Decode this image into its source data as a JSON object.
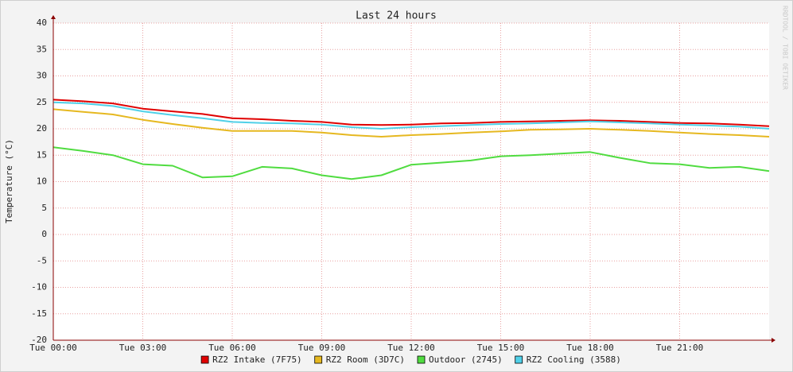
{
  "chart_data": {
    "type": "line",
    "title": "Last 24 hours",
    "y_label": "Temperature (°C)",
    "watermark": "RRDTOOL / TOBI OETIKER",
    "x": [
      0,
      1,
      2,
      3,
      4,
      5,
      6,
      7,
      8,
      9,
      10,
      11,
      12,
      13,
      14,
      15,
      16,
      17,
      18,
      19,
      20,
      21,
      22,
      23,
      24
    ],
    "xlim": [
      0,
      24
    ],
    "xticks": [
      {
        "value": 0,
        "label": "Tue 00:00"
      },
      {
        "value": 3,
        "label": "Tue 03:00"
      },
      {
        "value": 6,
        "label": "Tue 06:00"
      },
      {
        "value": 9,
        "label": "Tue 09:00"
      },
      {
        "value": 12,
        "label": "Tue 12:00"
      },
      {
        "value": 15,
        "label": "Tue 15:00"
      },
      {
        "value": 18,
        "label": "Tue 18:00"
      },
      {
        "value": 21,
        "label": "Tue 21:00"
      }
    ],
    "ylim": [
      -20,
      40
    ],
    "yticks": [
      -20,
      -15,
      -10,
      -5,
      0,
      5,
      10,
      15,
      20,
      25,
      30,
      35,
      40
    ],
    "grid": true,
    "legend": "bottom",
    "series": [
      {
        "name": "RZ2 Intake (7F75)",
        "color": "#e00000",
        "values": [
          25.5,
          25.2,
          24.8,
          23.8,
          23.3,
          22.8,
          22.0,
          21.8,
          21.5,
          21.3,
          20.8,
          20.7,
          20.8,
          21.0,
          21.1,
          21.3,
          21.4,
          21.5,
          21.6,
          21.5,
          21.3,
          21.1,
          21.0,
          20.8,
          20.5
        ]
      },
      {
        "name": "RZ2 Room (3D7C)",
        "color": "#e6b820",
        "values": [
          23.7,
          23.2,
          22.7,
          21.7,
          20.9,
          20.2,
          19.6,
          19.6,
          19.6,
          19.3,
          18.8,
          18.5,
          18.8,
          19.0,
          19.3,
          19.5,
          19.8,
          19.9,
          20.0,
          19.8,
          19.6,
          19.3,
          19.0,
          18.8,
          18.5
        ]
      },
      {
        "name": "Outdoor (2745)",
        "color": "#50dc40",
        "values": [
          16.5,
          15.8,
          15.0,
          13.3,
          13.0,
          10.8,
          11.0,
          12.8,
          12.5,
          11.2,
          10.5,
          11.2,
          13.2,
          13.6,
          14.0,
          14.8,
          15.0,
          15.3,
          15.6,
          14.5,
          13.5,
          13.3,
          12.6,
          12.8,
          12.0
        ]
      },
      {
        "name": "RZ2 Cooling (3588)",
        "color": "#50d0e8",
        "values": [
          25.0,
          24.8,
          24.3,
          23.3,
          22.6,
          22.0,
          21.3,
          21.1,
          21.0,
          20.8,
          20.3,
          20.0,
          20.3,
          20.5,
          20.7,
          20.9,
          21.0,
          21.2,
          21.4,
          21.2,
          21.0,
          20.8,
          20.6,
          20.4,
          20.0
        ]
      }
    ]
  }
}
